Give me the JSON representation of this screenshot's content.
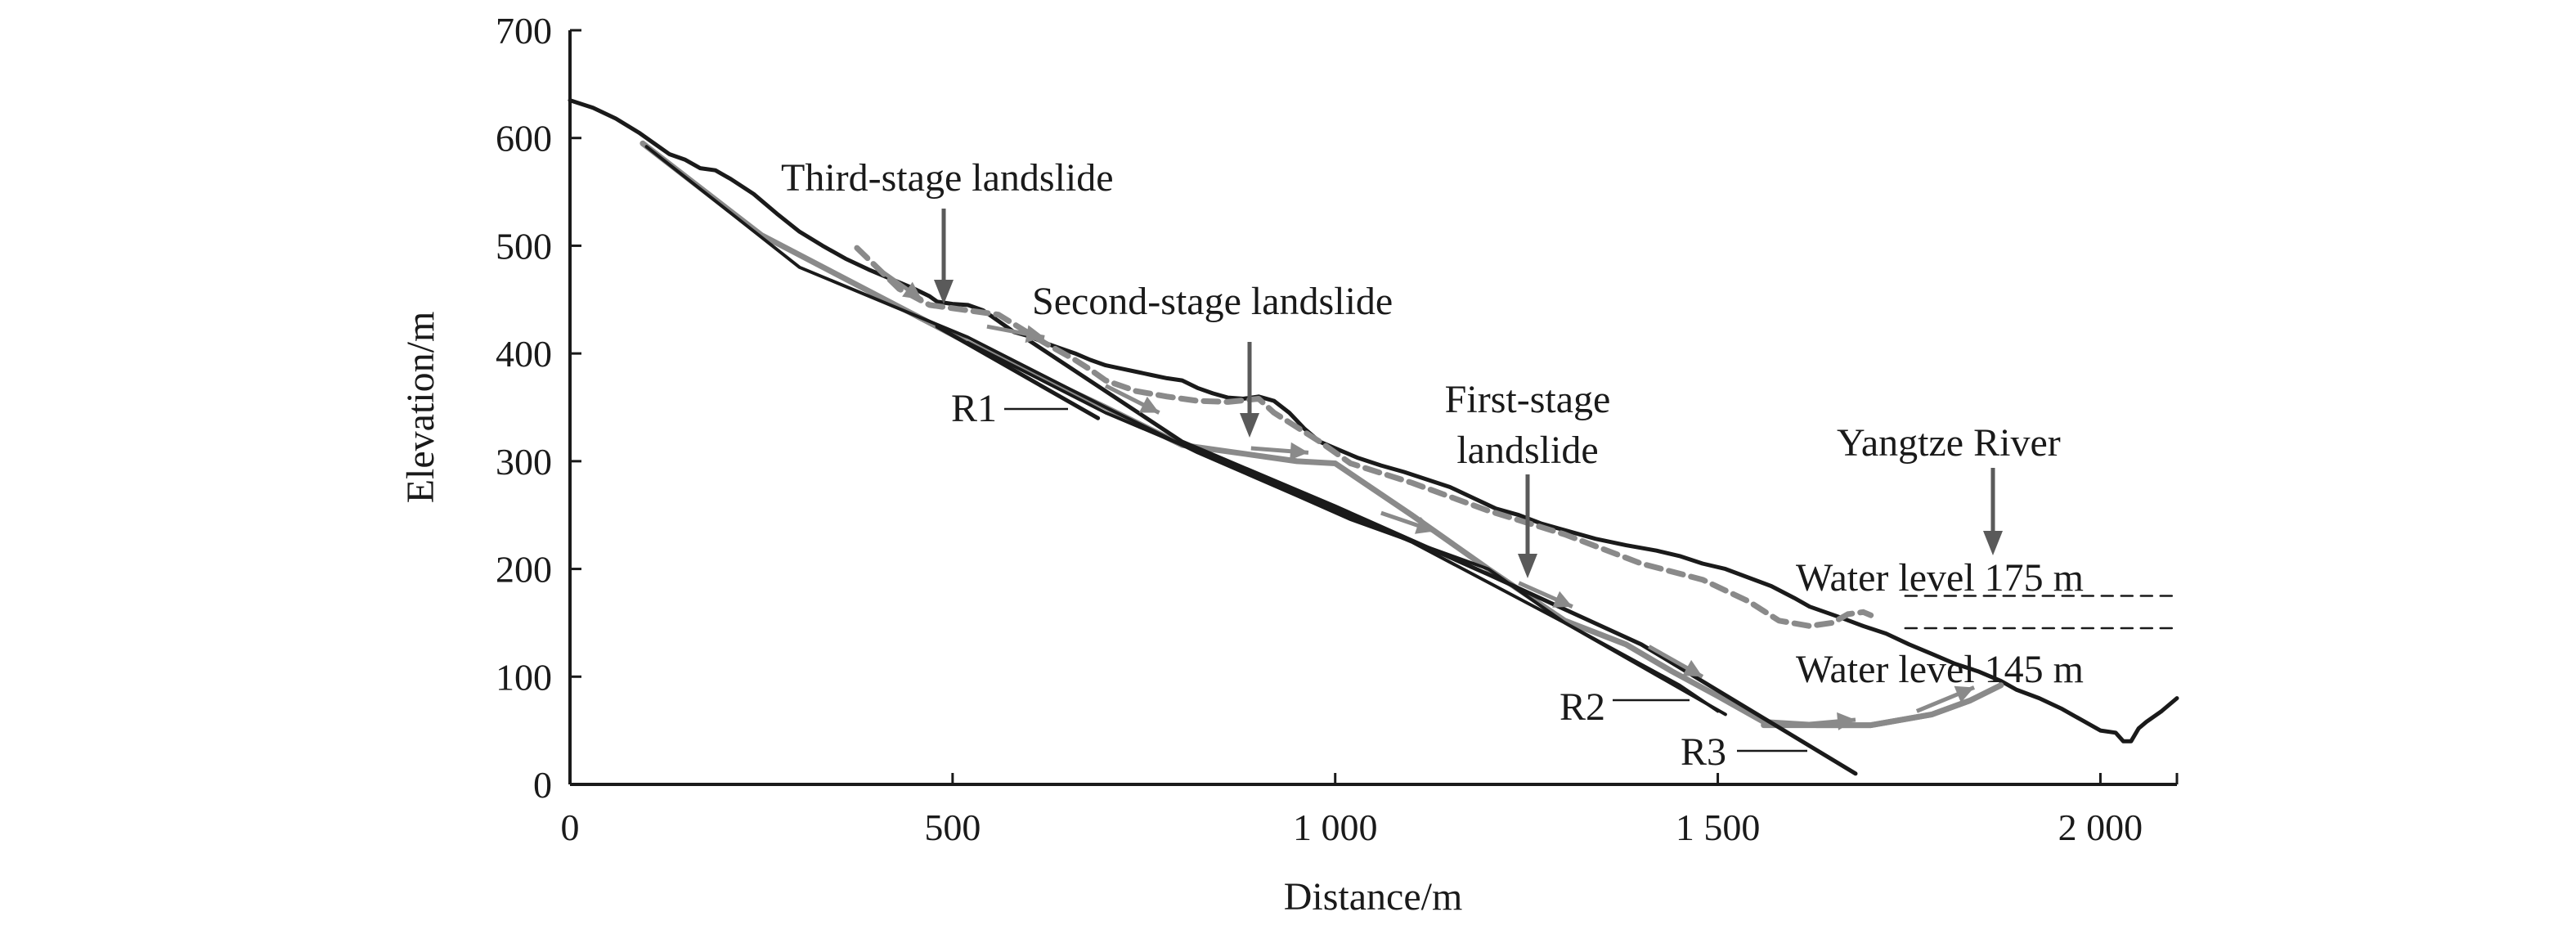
{
  "figure": {
    "xlabel": "Distance/m",
    "ylabel": "Elevation/m",
    "x_ticks": [
      "0",
      "500",
      "1 000",
      "1 500",
      "2 000"
    ],
    "y_ticks": [
      "0",
      "100",
      "200",
      "300",
      "400",
      "500",
      "600",
      "700"
    ],
    "xlim": [
      0,
      2100
    ],
    "ylim": [
      0,
      700
    ],
    "labels": {
      "third": "Third-stage landslide",
      "second": "Second-stage landslide",
      "first_1": "First-stage",
      "first_2": "landslide",
      "river": "Yangtze River",
      "wl175": "Water level 175 m",
      "wl145": "Water level 145 m",
      "r1": "R1",
      "r2": "R2",
      "r3": "R3"
    },
    "colors": {
      "ground": "#1a1a1a",
      "slide": "#8a8a8a",
      "arrow": "#8a8a8a",
      "pointer": "#5a5a5a"
    }
  },
  "chart_data": {
    "type": "line",
    "xlabel": "Distance/m",
    "ylabel": "Elevation/m",
    "xlim": [
      0,
      2100
    ],
    "ylim": [
      0,
      700
    ],
    "grid": false,
    "series": [
      {
        "x": [
          0,
          30,
          60,
          90,
          110,
          130,
          150,
          170,
          190,
          210,
          240,
          270,
          300,
          330,
          360,
          390,
          410,
          430,
          450,
          470,
          480,
          500,
          520,
          540,
          560,
          580,
          600,
          620,
          640,
          660,
          680,
          700,
          720,
          740,
          760,
          780,
          800,
          820,
          840,
          860,
          880,
          900,
          920,
          940,
          960,
          980,
          1000,
          1030,
          1060,
          1090,
          1120,
          1150,
          1180,
          1210,
          1240,
          1270,
          1300,
          1340,
          1380,
          1420,
          1450,
          1480,
          1510,
          1540,
          1570,
          1600,
          1620,
          1660,
          1690,
          1720,
          1750,
          1780,
          1810,
          1840,
          1870,
          1890,
          1920,
          1950,
          1980,
          2000,
          2020,
          2030,
          2040,
          2050,
          2060,
          2080,
          2100
        ],
        "y": [
          635,
          628,
          618,
          605,
          595,
          585,
          580,
          572,
          570,
          562,
          548,
          530,
          513,
          500,
          488,
          478,
          472,
          466,
          460,
          453,
          448,
          446,
          445,
          440,
          430,
          420,
          416,
          410,
          405,
          400,
          394,
          389,
          386,
          383,
          380,
          377,
          375,
          368,
          363,
          359,
          358,
          360,
          356,
          345,
          330,
          318,
          312,
          303,
          296,
          290,
          283,
          276,
          266,
          256,
          250,
          242,
          236,
          228,
          222,
          217,
          212,
          205,
          200,
          192,
          184,
          173,
          165,
          155,
          147,
          140,
          130,
          121,
          112,
          105,
          96,
          88,
          80,
          70,
          58,
          50,
          48,
          40,
          40,
          52,
          58,
          68,
          80
        ]
      },
      {
        "x": [
          375,
          430,
          470,
          520,
          560,
          620,
          660,
          680,
          700,
          740,
          780,
          820,
          860,
          900,
          920,
          980,
          1020,
          1100,
          1200,
          1300,
          1400,
          1480,
          1540,
          1580,
          1620,
          1650,
          1670,
          1690,
          1700
        ],
        "y": [
          498,
          460,
          445,
          440,
          436,
          410,
          394,
          385,
          375,
          365,
          360,
          356,
          355,
          358,
          345,
          318,
          298,
          280,
          254,
          232,
          205,
          190,
          170,
          152,
          147,
          150,
          158,
          160,
          157
        ]
      },
      {
        "x": [
          95,
          250,
          520,
          700,
          800,
          870,
          950,
          1000,
          1100,
          1200,
          1300,
          1380,
          1440,
          1500,
          1560,
          1630,
          1700,
          1780,
          1830,
          1870
        ],
        "y": [
          595,
          510,
          410,
          350,
          315,
          308,
          300,
          298,
          250,
          200,
          152,
          130,
          105,
          82,
          58,
          55,
          55,
          65,
          78,
          92
        ]
      },
      {
        "x": [
          1560,
          1630,
          1700,
          1780,
          1830,
          1870
        ],
        "y": [
          55,
          55,
          55,
          65,
          78,
          92
        ]
      },
      {
        "x": [
          100,
          300,
          520,
          700,
          820,
          950,
          1020,
          1200,
          1300,
          1450,
          1500
        ],
        "y": [
          592,
          480,
          415,
          350,
          308,
          268,
          246,
          200,
          150,
          92,
          68
        ]
      },
      {
        "x": [
          520,
          700,
          900,
          1100,
          1300,
          1510
        ],
        "y": [
          410,
          345,
          285,
          225,
          150,
          65
        ]
      },
      {
        "x": [
          600,
          800,
          1000,
          1200,
          1400,
          1680
        ],
        "y": [
          412,
          318,
          258,
          195,
          130,
          10
        ]
      },
      {
        "x": [
          480,
          690
        ],
        "y": [
          425,
          340
        ]
      },
      {
        "x": [
          1745,
          2100
        ],
        "y": [
          175,
          175
        ]
      },
      {
        "x": [
          1745,
          2100
        ],
        "y": [
          145,
          145
        ]
      }
    ]
  }
}
